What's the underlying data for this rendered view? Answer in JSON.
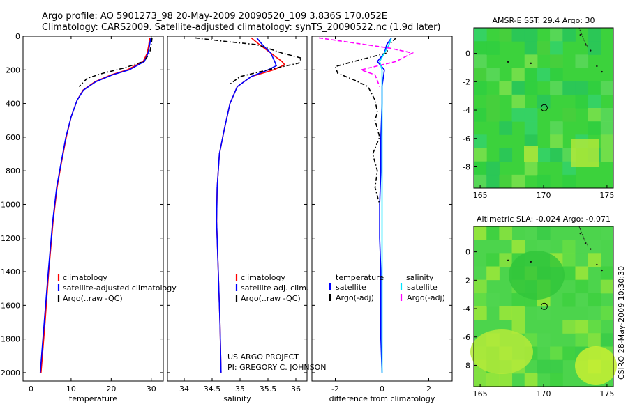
{
  "header": {
    "line1": "Argo profile: AO 5901273_98 20-May-2009 20090520_109 3.836S 170.052E",
    "line2": "Climatology: CARS2009. Satellite-adjusted climatology: synTS_20090522.nc (1.9d later)"
  },
  "credits": {
    "project": "US ARGO PROJECT",
    "pi": "PI: GREGORY C. JOHNSON",
    "stamp": "CSIRO 28-May-2009 10:30:30"
  },
  "colors": {
    "climatology": "#ff0000",
    "satellite": "#0000ff",
    "argo": "#000000",
    "salinity_satellite": "#00e5ff",
    "salinity_argo": "#ff00ff",
    "map_circle": "#000000"
  },
  "chart_data": [
    {
      "type": "line",
      "id": "temperature",
      "xlabel": "temperature",
      "xlim": [
        -2,
        33
      ],
      "ylim": [
        2050,
        0
      ],
      "xticks": [
        0,
        10,
        20,
        30
      ],
      "yticks": [
        0,
        200,
        400,
        600,
        800,
        1000,
        1200,
        1400,
        1600,
        1800,
        2000
      ],
      "legend": {
        "position": "bottom-right",
        "entries": [
          "climatology",
          "satellite-adjusted climatology",
          "Argo(..raw -QC)"
        ]
      },
      "series": [
        {
          "name": "climatology",
          "color": "#ff0000",
          "dash": "solid",
          "points": [
            [
              29.6,
              10
            ],
            [
              29.4,
              50
            ],
            [
              29.0,
              100
            ],
            [
              28.0,
              150
            ],
            [
              24.0,
              200
            ],
            [
              20.0,
              230
            ],
            [
              16.0,
              270
            ],
            [
              13.0,
              320
            ],
            [
              11.5,
              380
            ],
            [
              10.0,
              480
            ],
            [
              8.8,
              600
            ],
            [
              7.6,
              750
            ],
            [
              6.5,
              900
            ],
            [
              5.5,
              1100
            ],
            [
              4.4,
              1400
            ],
            [
              3.5,
              1700
            ],
            [
              2.5,
              2000
            ]
          ]
        },
        {
          "name": "satellite-adjusted climatology",
          "color": "#0000ff",
          "dash": "solid",
          "points": [
            [
              29.9,
              10
            ],
            [
              29.6,
              50
            ],
            [
              29.2,
              100
            ],
            [
              28.3,
              150
            ],
            [
              24.5,
              200
            ],
            [
              20.3,
              230
            ],
            [
              16.2,
              270
            ],
            [
              13.1,
              320
            ],
            [
              11.5,
              380
            ],
            [
              10.0,
              480
            ],
            [
              8.7,
              600
            ],
            [
              7.5,
              750
            ],
            [
              6.4,
              900
            ],
            [
              5.4,
              1100
            ],
            [
              4.3,
              1400
            ],
            [
              3.3,
              1700
            ],
            [
              2.3,
              2000
            ]
          ]
        },
        {
          "name": "Argo(..raw -QC)",
          "color": "#000000",
          "dash": "dashdot",
          "points": [
            [
              30.2,
              10
            ],
            [
              30.0,
              50
            ],
            [
              29.6,
              100
            ],
            [
              28.2,
              150
            ],
            [
              23.0,
              190
            ],
            [
              18.0,
              220
            ],
            [
              14.0,
              250
            ],
            [
              12.0,
              300
            ]
          ]
        }
      ]
    },
    {
      "type": "line",
      "id": "salinity",
      "xlabel": "salinity",
      "xlim": [
        33.7,
        36.2
      ],
      "ylim": [
        2050,
        0
      ],
      "xticks": [
        34,
        34.5,
        35,
        35.5,
        36
      ],
      "yticks": [
        0,
        200,
        400,
        600,
        800,
        1000,
        1200,
        1400,
        1600,
        1800,
        2000
      ],
      "legend": {
        "position": "bottom-right",
        "entries": [
          "climatology",
          "satellite adj. clim.",
          "Argo(..raw -QC)"
        ]
      },
      "series": [
        {
          "name": "climatology",
          "color": "#ff0000",
          "dash": "solid",
          "points": [
            [
              35.2,
              10
            ],
            [
              35.35,
              50
            ],
            [
              35.55,
              100
            ],
            [
              35.75,
              150
            ],
            [
              35.8,
              170
            ],
            [
              35.6,
              200
            ],
            [
              35.2,
              240
            ],
            [
              34.95,
              300
            ],
            [
              34.82,
              400
            ],
            [
              34.72,
              550
            ],
            [
              34.63,
              700
            ],
            [
              34.59,
              900
            ],
            [
              34.58,
              1100
            ],
            [
              34.6,
              1300
            ],
            [
              34.62,
              1500
            ],
            [
              34.64,
              1700
            ],
            [
              34.66,
              2000
            ]
          ]
        },
        {
          "name": "satellite adj. clim.",
          "color": "#0000ff",
          "dash": "solid",
          "points": [
            [
              35.3,
              10
            ],
            [
              35.4,
              50
            ],
            [
              35.55,
              100
            ],
            [
              35.62,
              150
            ],
            [
              35.65,
              175
            ],
            [
              35.5,
              200
            ],
            [
              35.2,
              240
            ],
            [
              34.95,
              300
            ],
            [
              34.82,
              400
            ],
            [
              34.72,
              550
            ],
            [
              34.63,
              700
            ],
            [
              34.59,
              900
            ],
            [
              34.58,
              1100
            ],
            [
              34.6,
              1300
            ],
            [
              34.62,
              1500
            ],
            [
              34.64,
              1700
            ],
            [
              34.66,
              2000
            ]
          ]
        },
        {
          "name": "Argo(..raw -QC)",
          "color": "#000000",
          "dash": "dashdot",
          "points": [
            [
              34.2,
              10
            ],
            [
              34.7,
              30
            ],
            [
              35.3,
              50
            ],
            [
              35.75,
              100
            ],
            [
              36.1,
              130
            ],
            [
              36.05,
              160
            ],
            [
              35.5,
              200
            ],
            [
              35.0,
              240
            ],
            [
              34.8,
              290
            ]
          ]
        }
      ]
    },
    {
      "type": "line",
      "id": "difference",
      "xlabel": "difference from climatology",
      "xlim": [
        -3,
        3
      ],
      "ylim": [
        2050,
        0
      ],
      "xticks": [
        -2,
        0,
        2
      ],
      "yticks": [
        0,
        200,
        400,
        600,
        800,
        1000,
        1200,
        1400,
        1600,
        1800,
        2000
      ],
      "legend": {
        "position": "bottom",
        "title_temperature": "temperature",
        "title_salinity": "salinity",
        "entries": [
          "satellite",
          "Argo(-adj)",
          "satellite",
          "Argo(-adj)"
        ]
      },
      "series": [
        {
          "name": "temperature satellite",
          "color": "#0000ff",
          "dash": "solid",
          "points": [
            [
              0.4,
              10
            ],
            [
              0.2,
              50
            ],
            [
              0.1,
              100
            ],
            [
              -0.2,
              150
            ],
            [
              0.1,
              200
            ],
            [
              0,
              300
            ],
            [
              0,
              400
            ],
            [
              -0.05,
              600
            ],
            [
              -0.05,
              800
            ],
            [
              -0.1,
              1000
            ],
            [
              -0.1,
              1200
            ],
            [
              -0.05,
              1400
            ],
            [
              -0.05,
              1600
            ],
            [
              -0.05,
              1800
            ],
            [
              0,
              2000
            ]
          ]
        },
        {
          "name": "temperature Argo(-adj)",
          "color": "#000000",
          "dash": "dashdot",
          "points": [
            [
              0.6,
              10
            ],
            [
              0.3,
              50
            ],
            [
              0.2,
              100
            ],
            [
              -1.2,
              150
            ],
            [
              -2.0,
              180
            ],
            [
              -1.9,
              220
            ],
            [
              -1.2,
              260
            ],
            [
              -0.6,
              300
            ],
            [
              -0.3,
              380
            ],
            [
              -0.2,
              450
            ],
            [
              -0.3,
              500
            ],
            [
              -0.1,
              600
            ],
            [
              -0.4,
              700
            ],
            [
              -0.2,
              800
            ],
            [
              -0.3,
              900
            ],
            [
              -0.1,
              1000
            ]
          ]
        },
        {
          "name": "salinity satellite",
          "color": "#00e5ff",
          "dash": "solid",
          "points": [
            [
              0.4,
              10
            ],
            [
              0.3,
              50
            ],
            [
              0.1,
              100
            ],
            [
              -0.1,
              150
            ],
            [
              0,
              200
            ],
            [
              0,
              400
            ],
            [
              0,
              600
            ],
            [
              0,
              800
            ],
            [
              0,
              1000
            ],
            [
              0,
              1200
            ],
            [
              0,
              1400
            ],
            [
              0,
              1600
            ],
            [
              0,
              1800
            ],
            [
              0,
              2000
            ]
          ]
        },
        {
          "name": "salinity Argo(-adj)",
          "color": "#ff00ff",
          "dash": "dashed",
          "points": [
            [
              -2.7,
              10
            ],
            [
              -1.2,
              40
            ],
            [
              0.3,
              70
            ],
            [
              1.3,
              100
            ],
            [
              0.6,
              150
            ],
            [
              -0.9,
              200
            ],
            [
              -0.3,
              230
            ],
            [
              -0.1,
              300
            ]
          ]
        }
      ]
    },
    {
      "type": "heatmap",
      "id": "sst_map",
      "title": "AMSR-E SST: 29.4 Argo: 30",
      "xlim": [
        164.5,
        175.5
      ],
      "ylim": [
        -9.5,
        1.8
      ],
      "xticks": [
        165,
        170,
        175
      ],
      "yticks": [
        0,
        -2,
        -4,
        -6,
        -8
      ],
      "argo_position": [
        170.05,
        -3.84
      ],
      "base_color": "#3cd23c"
    },
    {
      "type": "heatmap",
      "id": "sla_map",
      "title": "Altimetric SLA: -0.024 Argo: -0.071",
      "xlim": [
        164.5,
        175.5
      ],
      "ylim": [
        -9.5,
        1.8
      ],
      "xticks": [
        165,
        170,
        175
      ],
      "yticks": [
        0,
        -2,
        -4,
        -6,
        -8
      ],
      "argo_position": [
        170.05,
        -3.84
      ],
      "base_color": "#4cd44c"
    }
  ]
}
